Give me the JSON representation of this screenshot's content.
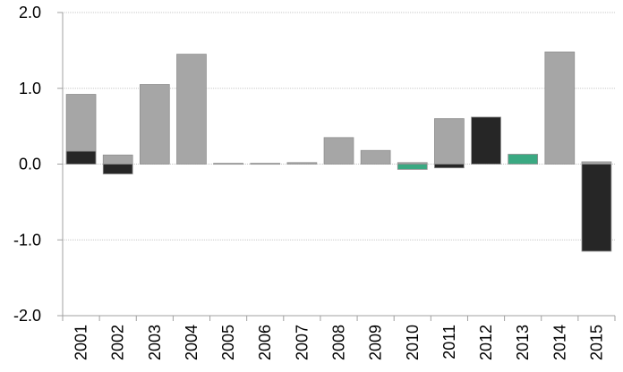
{
  "chart_data": {
    "type": "bar",
    "title": "",
    "xlabel": "",
    "ylabel": "",
    "ylim": [
      -2.0,
      2.0
    ],
    "yticks": [
      "2.0",
      "1.0",
      "0.0",
      "-1.0",
      "-2.0"
    ],
    "grid": true,
    "legend": "none",
    "categories": [
      "2001",
      "2002",
      "2003",
      "2004",
      "2005",
      "2006",
      "2007",
      "2008",
      "2009",
      "2010",
      "2011",
      "2012",
      "2013",
      "2014",
      "2015"
    ],
    "series": [
      {
        "color": "#a6a6a6",
        "values": [
          0.92,
          0.12,
          1.05,
          1.45,
          0.01,
          0.01,
          0.02,
          0.35,
          0.18,
          0.02,
          0.6,
          0.0,
          0.0,
          1.48,
          0.03
        ]
      },
      {
        "color": "#262626",
        "values": [
          0.17,
          -0.13,
          0.0,
          0.0,
          0.0,
          0.0,
          0.0,
          0.0,
          0.0,
          0.0,
          -0.05,
          0.62,
          0.0,
          0.0,
          -1.15
        ]
      },
      {
        "color": "#3aa982",
        "values": [
          0.0,
          0.0,
          0.0,
          0.0,
          0.0,
          0.0,
          0.0,
          0.0,
          0.0,
          -0.07,
          0.0,
          0.0,
          0.13,
          0.0,
          0.0
        ]
      }
    ]
  }
}
